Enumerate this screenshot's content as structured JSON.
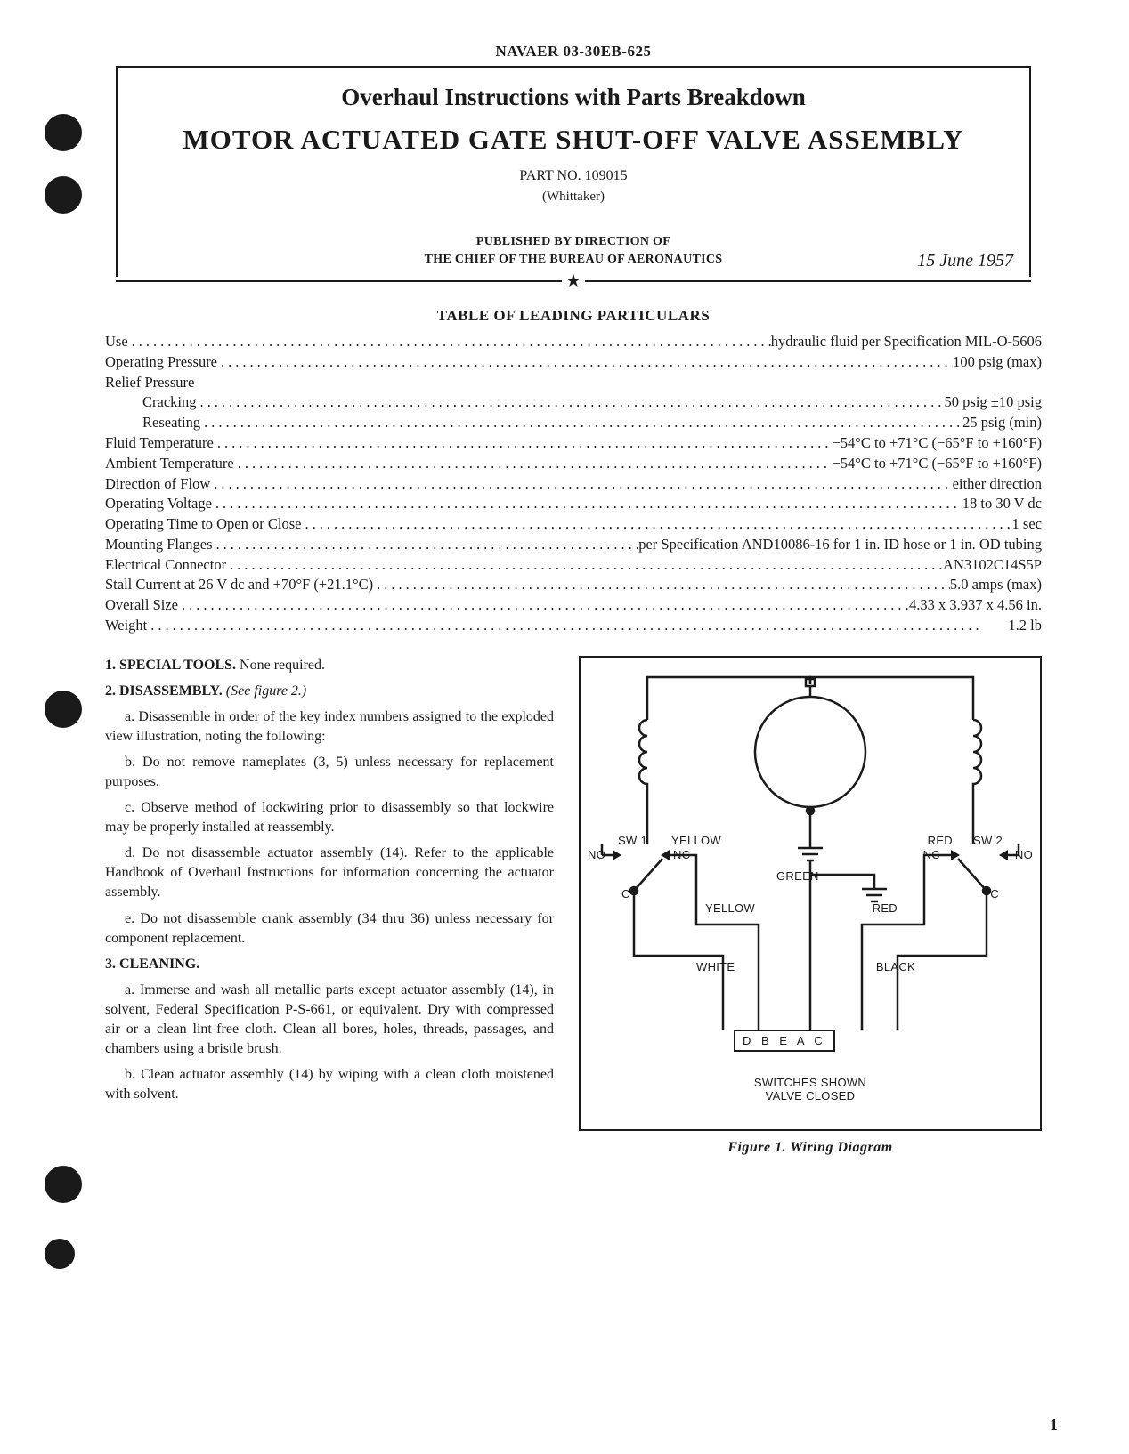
{
  "doc_id": "NAVAER 03-30EB-625",
  "title_line1": "Overhaul Instructions with Parts Breakdown",
  "title_line2": "MOTOR ACTUATED GATE SHUT-OFF VALVE ASSEMBLY",
  "part_no": "PART NO. 109015",
  "maker": "(Whittaker)",
  "published_line1": "PUBLISHED BY DIRECTION OF",
  "published_line2": "THE CHIEF OF THE BUREAU OF AERONAUTICS",
  "date": "15 June 1957",
  "particulars_title": "TABLE OF LEADING PARTICULARS",
  "particulars": [
    {
      "label": "Use",
      "value": "hydraulic fluid per Specification MIL-O-5606",
      "indent": false
    },
    {
      "label": "Operating Pressure",
      "value": "100 psig (max)",
      "indent": false
    },
    {
      "label": "Relief Pressure",
      "value": "",
      "indent": false,
      "nodots": true
    },
    {
      "label": "Cracking",
      "value": "50 psig ±10 psig",
      "indent": true
    },
    {
      "label": "Reseating",
      "value": "25 psig (min)",
      "indent": true
    },
    {
      "label": "Fluid Temperature",
      "value": "−54°C to +71°C (−65°F to +160°F)",
      "indent": false
    },
    {
      "label": "Ambient Temperature",
      "value": "−54°C to +71°C (−65°F to +160°F)",
      "indent": false
    },
    {
      "label": "Direction of Flow",
      "value": "either direction",
      "indent": false
    },
    {
      "label": "Operating Voltage",
      "value": "18 to 30 V dc",
      "indent": false
    },
    {
      "label": "Operating Time to Open or Close",
      "value": "1 sec",
      "indent": false
    },
    {
      "label": "Mounting Flanges",
      "value": "per Specification AND10086-16 for 1 in. ID hose or 1 in. OD tubing",
      "indent": false
    },
    {
      "label": "Electrical Connector",
      "value": "AN3102C14S5P",
      "indent": false
    },
    {
      "label": "Stall Current at 26 V dc and +70°F (+21.1°C)",
      "value": "5.0 amps (max)",
      "indent": false
    },
    {
      "label": "Overall Size",
      "value": "4.33 x 3.937 x 4.56 in.",
      "indent": false
    },
    {
      "label": "Weight",
      "value": "1.2 lb",
      "indent": false
    }
  ],
  "sections": {
    "s1": {
      "num": "1.",
      "head": "SPECIAL TOOLS.",
      "rest": " None required."
    },
    "s2": {
      "num": "2.",
      "head": "DISASSEMBLY.",
      "rest": " (See figure 2.)",
      "paras": [
        "a. Disassemble in order of the key index numbers assigned to the exploded view illustration, noting the following:",
        "b. Do not remove nameplates (3, 5) unless necessary for replacement purposes.",
        "c. Observe method of lockwiring prior to disassembly so that lockwire may be properly installed at reassembly.",
        "d. Do not disassemble actuator assembly (14). Refer to the applicable Handbook of Overhaul Instructions for information concerning the actuator assembly.",
        "e. Do not disassemble crank assembly (34 thru 36) unless necessary for component replacement."
      ]
    },
    "s3": {
      "num": "3.",
      "head": "CLEANING.",
      "paras": [
        "a. Immerse and wash all metallic parts except actuator assembly (14), in solvent, Federal Specification P-S-661, or equivalent. Dry with compressed air or a clean lint-free cloth. Clean all bores, holes, threads, passages, and chambers using a bristle brush.",
        "b. Clean actuator assembly (14) by wiping with a clean cloth moistened with solvent."
      ]
    }
  },
  "figure": {
    "caption": "Figure 1.  Wiring Diagram",
    "bottom_note": "SWITCHES SHOWN\nVALVE CLOSED",
    "labels": {
      "sw1": "SW 1",
      "sw2": "SW 2",
      "no_l": "NO",
      "nc_l": "NC",
      "c_l": "C",
      "no_r": "NO",
      "nc_r": "NC",
      "c_r": "C",
      "yellow1": "YELLOW",
      "yellow2": "YELLOW",
      "red1": "RED",
      "red2": "RED",
      "green": "GREEN",
      "white": "WHITE",
      "black": "BLACK",
      "connector": "D B E A C"
    },
    "colors": {
      "stroke": "#1a1a1a",
      "stroke_width": 2.5
    }
  },
  "page_number": "1"
}
